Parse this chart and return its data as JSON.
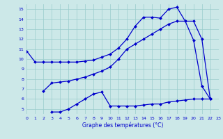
{
  "title": "Graphe des températures (°C)",
  "bg_color": "#cce8e8",
  "grid_color": "#99cccc",
  "line_color": "#0000cc",
  "xlim": [
    0,
    23
  ],
  "ylim": [
    4.5,
    15.5
  ],
  "xticks": [
    0,
    1,
    2,
    3,
    4,
    5,
    6,
    7,
    8,
    9,
    10,
    11,
    12,
    13,
    14,
    15,
    16,
    17,
    18,
    19,
    20,
    21,
    22,
    23
  ],
  "yticks": [
    5,
    6,
    7,
    8,
    9,
    10,
    11,
    12,
    13,
    14,
    15
  ],
  "line1_x": [
    0,
    1,
    2,
    3,
    4,
    5,
    6,
    7,
    8,
    9,
    10,
    11,
    12,
    13,
    14,
    15,
    16,
    17,
    18,
    19,
    20,
    21,
    22
  ],
  "line1_y": [
    10.8,
    9.7,
    9.7,
    9.7,
    9.7,
    9.7,
    9.7,
    9.8,
    9.9,
    10.2,
    10.5,
    11.1,
    12.0,
    13.3,
    14.2,
    14.2,
    14.1,
    15.0,
    15.2,
    13.8,
    11.9,
    7.3,
    6.0
  ],
  "line2_x": [
    2,
    3,
    4,
    5,
    6,
    7,
    8,
    9,
    10,
    11,
    12,
    13,
    14,
    15,
    16,
    17,
    18,
    19,
    20,
    21,
    22
  ],
  "line2_y": [
    6.8,
    7.6,
    7.7,
    7.8,
    8.0,
    8.2,
    8.5,
    8.8,
    9.2,
    10.0,
    11.0,
    11.5,
    12.0,
    12.5,
    13.0,
    13.5,
    13.8,
    13.8,
    13.8,
    12.0,
    6.0
  ],
  "line3_x": [
    3,
    4,
    5,
    6,
    7,
    8,
    9,
    10,
    11,
    12,
    13,
    14,
    15,
    16,
    17,
    18,
    19,
    20,
    21,
    22
  ],
  "line3_y": [
    4.7,
    4.7,
    5.0,
    5.5,
    6.0,
    6.5,
    6.7,
    5.3,
    5.3,
    5.3,
    5.3,
    5.4,
    5.5,
    5.5,
    5.7,
    5.8,
    5.9,
    6.0,
    6.0,
    6.0
  ]
}
